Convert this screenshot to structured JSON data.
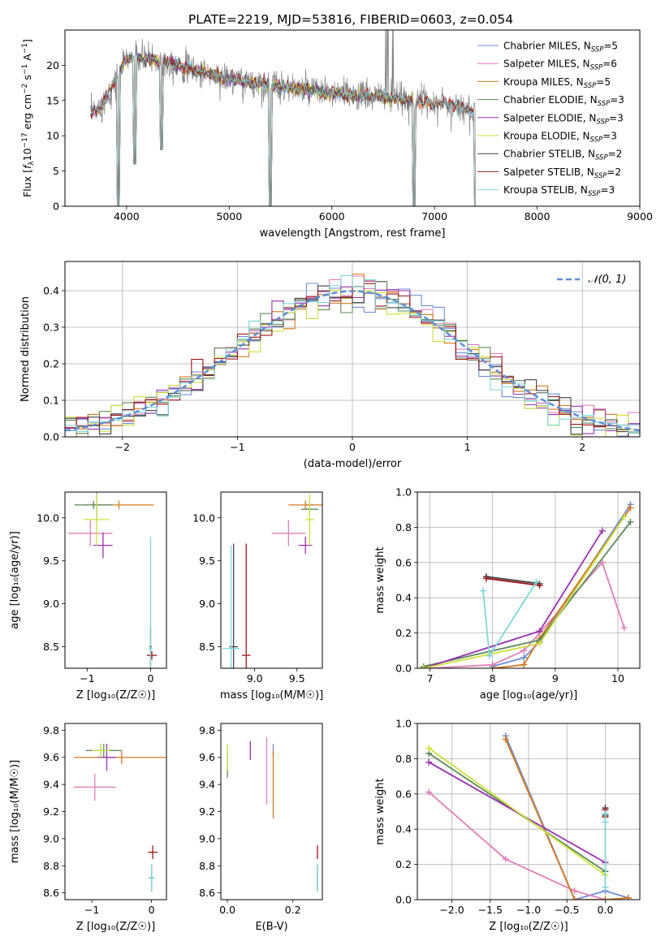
{
  "figure_title": "PLATE=2219, MJD=53816, FIBERID=0603, z=0.054",
  "colors": {
    "Chabrier MILES": "#6f8fd8",
    "Salpeter MILES": "#e07fb8",
    "Kroupa MILES": "#d47a1e",
    "Chabrier ELODIE": "#5a8a5a",
    "Salpeter ELODIE": "#9a30b0",
    "Kroupa ELODIE": "#cde23a",
    "Chabrier STELIB": "#444444",
    "Salpeter STELIB": "#a01515",
    "Kroupa STELIB": "#7dd8d8",
    "data": "#808080",
    "gaussian": "#5b8fd9"
  },
  "chart_data": [
    {
      "id": "spectrum",
      "type": "line",
      "xlabel": "wavelength [Angstrom, rest frame]",
      "ylabel_parts": {
        "pre": "Flux [",
        "f": "f",
        "lam": "λ",
        "mid": "10",
        "exp1": "−17",
        "rest": " erg cm",
        "exp2": "−2",
        "s": " s",
        "exp3": "−1",
        "A": " A",
        "exp4": "−1",
        "end": "]"
      },
      "xlim": [
        3400,
        9000
      ],
      "ylim": [
        0,
        25
      ],
      "xticks": [
        "4000",
        "5000",
        "6000",
        "7000",
        "8000",
        "9000"
      ],
      "yticks": [
        "0",
        "5",
        "10",
        "15",
        "20"
      ],
      "grid": false,
      "legend_position": "top-right",
      "legend": [
        {
          "name": "Chabrier MILES",
          "nssp": "5"
        },
        {
          "name": "Salpeter MILES",
          "nssp": "6"
        },
        {
          "name": "Kroupa MILES",
          "nssp": "5"
        },
        {
          "name": "Chabrier ELODIE",
          "nssp": "3"
        },
        {
          "name": "Salpeter ELODIE",
          "nssp": "3"
        },
        {
          "name": "Kroupa ELODIE",
          "nssp": "3"
        },
        {
          "name": "Chabrier STELIB",
          "nssp": "2"
        },
        {
          "name": "Salpeter STELIB",
          "nssp": "2"
        },
        {
          "name": "Kroupa STELIB",
          "nssp": "3"
        }
      ],
      "continuum_anchors": [
        [
          3650,
          13
        ],
        [
          3750,
          14
        ],
        [
          3900,
          18
        ],
        [
          4000,
          21
        ],
        [
          4200,
          21
        ],
        [
          4500,
          20
        ],
        [
          5000,
          18
        ],
        [
          5500,
          17
        ],
        [
          6000,
          16
        ],
        [
          6500,
          15.5
        ],
        [
          7000,
          14.7
        ],
        [
          7300,
          14
        ],
        [
          7450,
          12.5
        ]
      ],
      "model_ranges": {
        "MILES": [
          3650,
          7400
        ],
        "ELODIE": [
          3900,
          6800
        ],
        "STELIB": [
          3650,
          7400
        ]
      },
      "absorption_features": [
        [
          3920,
          0
        ],
        [
          4080,
          6
        ],
        [
          4340,
          8
        ],
        [
          5400,
          0
        ],
        [
          6800,
          0
        ],
        [
          7400,
          0
        ]
      ]
    },
    {
      "id": "residuals",
      "type": "histogram",
      "xlabel": "(data-model)/error",
      "ylabel": "Normed distribution",
      "xlim": [
        -2.5,
        2.5
      ],
      "ylim": [
        0,
        0.48
      ],
      "xticks": [
        "−2",
        "−1",
        "0",
        "1",
        "2"
      ],
      "yticks": [
        "0.0",
        "0.1",
        "0.2",
        "0.3",
        "0.4"
      ],
      "grid": true,
      "bin_width": 0.1,
      "legend_label": "𝒩(0, 1)",
      "legend_position": "top-right"
    },
    {
      "id": "age_vs_Z",
      "type": "scatter",
      "xlabel": "Z [log₁₀(Z/Z☉)]",
      "ylabel": "age  [log₁₀(age/yr)]",
      "xlim": [
        -1.35,
        0.25
      ],
      "ylim": [
        8.25,
        10.3
      ],
      "xticks": [
        "−1",
        "0"
      ],
      "yticks": [
        "8.5",
        "9.0",
        "9.5",
        "10.0"
      ],
      "points": [
        {
          "model": "Chabrier MILES",
          "x": -0.85,
          "y": 10.15,
          "xerr": 0.1,
          "yerr": 0.2
        },
        {
          "model": "Salpeter MILES",
          "x": -0.95,
          "y": 9.82,
          "xerr": 0.35,
          "yerr": 0.15
        },
        {
          "model": "Kroupa MILES",
          "x": -0.5,
          "y": 10.15,
          "xerr": 0.55,
          "yerr": 0.05
        },
        {
          "model": "Chabrier ELODIE",
          "x": -0.9,
          "y": 10.15,
          "xerr": 0.3,
          "yerr": 0.05
        },
        {
          "model": "Salpeter ELODIE",
          "x": -0.75,
          "y": 9.68,
          "xerr": 0.15,
          "yerr": 0.15
        },
        {
          "model": "Kroupa ELODIE",
          "x": -0.85,
          "y": 9.98,
          "xerr": 0.2,
          "yerr": 0.3
        },
        {
          "model": "Chabrier STELIB",
          "x": 0.0,
          "y": 8.5,
          "xerr": 0.02,
          "yerr": 0.25
        },
        {
          "model": "Salpeter STELIB",
          "x": 0.02,
          "y": 8.4,
          "xerr": 0.08,
          "yerr": 0.05
        },
        {
          "model": "Kroupa STELIB",
          "x": 0.0,
          "y": 8.48,
          "xerr": 0.03,
          "yerr": 1.3
        }
      ]
    },
    {
      "id": "age_vs_mass",
      "type": "scatter",
      "xlabel": "mass [log₁₀(M/M☉)]",
      "ylabel": "",
      "xlim": [
        8.6,
        9.8
      ],
      "ylim": [
        8.25,
        10.3
      ],
      "xticks": [
        "9.0",
        "9.5"
      ],
      "yticks": [
        "8.5",
        "9.0",
        "9.5",
        "10.0"
      ],
      "points": [
        {
          "model": "Chabrier MILES",
          "x": 9.65,
          "y": 10.15,
          "xerr": 0.05,
          "yerr": 0.05
        },
        {
          "model": "Salpeter MILES",
          "x": 9.4,
          "y": 9.82,
          "xerr": 0.2,
          "yerr": 0.15
        },
        {
          "model": "Kroupa MILES",
          "x": 9.6,
          "y": 10.15,
          "xerr": 0.2,
          "yerr": 0.05
        },
        {
          "model": "Chabrier ELODIE",
          "x": 9.65,
          "y": 10.1,
          "xerr": 0.1,
          "yerr": 0.05
        },
        {
          "model": "Salpeter ELODIE",
          "x": 9.6,
          "y": 9.68,
          "xerr": 0.08,
          "yerr": 0.1
        },
        {
          "model": "Kroupa ELODIE",
          "x": 9.65,
          "y": 9.98,
          "xerr": 0.05,
          "yerr": 0.3
        },
        {
          "model": "Chabrier STELIB",
          "x": 8.75,
          "y": 8.5,
          "xerr": 0.05,
          "yerr": 1.2
        },
        {
          "model": "Salpeter STELIB",
          "x": 8.9,
          "y": 8.4,
          "xerr": 0.05,
          "yerr": 1.3
        },
        {
          "model": "Kroupa STELIB",
          "x": 8.72,
          "y": 8.48,
          "xerr": 0.1,
          "yerr": 1.2
        }
      ]
    },
    {
      "id": "mass_weight_vs_age",
      "type": "line",
      "xlabel": "age  [log₁₀(age/yr)]",
      "ylabel": "mass weight",
      "xlim": [
        6.8,
        10.35
      ],
      "ylim": [
        0,
        1
      ],
      "xticks": [
        "7",
        "8",
        "9",
        "10"
      ],
      "yticks": [
        "0.0",
        "0.2",
        "0.4",
        "0.6",
        "0.8",
        "1.0"
      ],
      "grid": true,
      "series": [
        {
          "model": "Chabrier MILES",
          "x": [
            8.0,
            8.5,
            8.75,
            10.2
          ],
          "y": [
            0.01,
            0.06,
            0.15,
            0.93
          ]
        },
        {
          "model": "Salpeter MILES",
          "x": [
            7.0,
            8.0,
            8.5,
            9.75,
            10.1
          ],
          "y": [
            0.0,
            0.02,
            0.1,
            0.6,
            0.23
          ]
        },
        {
          "model": "Kroupa MILES",
          "x": [
            8.0,
            8.5,
            8.75,
            10.2
          ],
          "y": [
            0.0,
            0.02,
            0.17,
            0.91
          ]
        },
        {
          "model": "Chabrier ELODIE",
          "x": [
            6.9,
            8.75,
            10.2
          ],
          "y": [
            0.01,
            0.16,
            0.83
          ]
        },
        {
          "model": "Salpeter ELODIE",
          "x": [
            6.9,
            8.75,
            9.75
          ],
          "y": [
            0.0,
            0.21,
            0.78
          ]
        },
        {
          "model": "Kroupa ELODIE",
          "x": [
            6.9,
            8.75,
            10.1
          ],
          "y": [
            0.0,
            0.14,
            0.86
          ]
        },
        {
          "model": "Chabrier STELIB",
          "x": [
            7.9,
            8.75
          ],
          "y": [
            0.52,
            0.48
          ]
        },
        {
          "model": "Salpeter STELIB",
          "x": [
            7.9,
            8.75
          ],
          "y": [
            0.51,
            0.47
          ]
        },
        {
          "model": "Kroupa STELIB",
          "x": [
            7.85,
            7.95,
            8.7
          ],
          "y": [
            0.44,
            0.07,
            0.49
          ]
        }
      ]
    },
    {
      "id": "mass_vs_Z",
      "type": "scatter",
      "xlabel": "Z [log₁₀(Z/Z☉)]",
      "ylabel": "mass [log₁₀(M/M☉)]",
      "xlim": [
        -1.45,
        0.25
      ],
      "ylim": [
        8.55,
        9.85
      ],
      "xticks": [
        "−1",
        "0"
      ],
      "yticks": [
        "8.6",
        "8.8",
        "9.0",
        "9.2",
        "9.4",
        "9.6",
        "9.8"
      ],
      "points": [
        {
          "model": "Chabrier MILES",
          "x": -0.85,
          "y": 9.65,
          "xerr": 0.25,
          "yerr": 0.05
        },
        {
          "model": "Salpeter MILES",
          "x": -0.95,
          "y": 9.38,
          "xerr": 0.35,
          "yerr": 0.1
        },
        {
          "model": "Kroupa MILES",
          "x": -0.5,
          "y": 9.6,
          "xerr": 0.8,
          "yerr": 0.05
        },
        {
          "model": "Chabrier ELODIE",
          "x": -0.8,
          "y": 9.65,
          "xerr": 0.3,
          "yerr": 0.05
        },
        {
          "model": "Salpeter ELODIE",
          "x": -0.75,
          "y": 9.6,
          "xerr": 0.15,
          "yerr": 0.1
        },
        {
          "model": "Kroupa ELODIE",
          "x": -0.85,
          "y": 9.65,
          "xerr": 0.15,
          "yerr": 0.05
        },
        {
          "model": "Chabrier STELIB",
          "x": 0.0,
          "y": 8.71,
          "xerr": 0.05,
          "yerr": 0.1
        },
        {
          "model": "Salpeter STELIB",
          "x": 0.02,
          "y": 8.9,
          "xerr": 0.08,
          "yerr": 0.05
        },
        {
          "model": "Kroupa STELIB",
          "x": 0.0,
          "y": 8.71,
          "xerr": 0.05,
          "yerr": 0.1
        }
      ]
    },
    {
      "id": "mass_vs_EBV",
      "type": "scatter",
      "xlabel": "E(B-V)",
      "ylabel": "",
      "xlim": [
        -0.02,
        0.29
      ],
      "ylim": [
        8.55,
        9.85
      ],
      "xticks": [
        "0.0",
        "0.2"
      ],
      "yticks": [
        "8.6",
        "8.8",
        "9.0",
        "9.2",
        "9.4",
        "9.6",
        "9.8"
      ],
      "points": [
        {
          "model": "Chabrier MILES",
          "x": 0.14,
          "y": 9.65,
          "xerr": 0.0,
          "yerr": 0.05
        },
        {
          "model": "Salpeter MILES",
          "x": 0.12,
          "y": 9.5,
          "xerr": 0.0,
          "yerr": 0.25
        },
        {
          "model": "Kroupa MILES",
          "x": 0.14,
          "y": 9.4,
          "xerr": 0.0,
          "yerr": 0.25
        },
        {
          "model": "Chabrier ELODIE",
          "x": 0.0,
          "y": 9.55,
          "xerr": 0.0,
          "yerr": 0.1
        },
        {
          "model": "Salpeter ELODIE",
          "x": 0.07,
          "y": 9.65,
          "xerr": 0.0,
          "yerr": 0.07
        },
        {
          "model": "Kroupa ELODIE",
          "x": 0.0,
          "y": 9.6,
          "xerr": 0.0,
          "yerr": 0.1
        },
        {
          "model": "Chabrier STELIB",
          "x": 0.275,
          "y": 8.71,
          "xerr": 0.0,
          "yerr": 0.1
        },
        {
          "model": "Salpeter STELIB",
          "x": 0.275,
          "y": 8.9,
          "xerr": 0.0,
          "yerr": 0.05
        },
        {
          "model": "Kroupa STELIB",
          "x": 0.275,
          "y": 8.71,
          "xerr": 0.0,
          "yerr": 0.1
        }
      ]
    },
    {
      "id": "mass_weight_vs_Z",
      "type": "line",
      "xlabel": "Z [log₁₀(Z/Z☉)]",
      "ylabel": "mass weight",
      "xlim": [
        -2.45,
        0.45
      ],
      "ylim": [
        0,
        1
      ],
      "xticks": [
        "−2.0",
        "−1.5",
        "−1.0",
        "−0.5",
        "0.0"
      ],
      "yticks": [
        "0.0",
        "0.2",
        "0.4",
        "0.6",
        "0.8",
        "1.0"
      ],
      "grid": true,
      "series": [
        {
          "model": "Chabrier MILES",
          "x": [
            -1.3,
            -0.4,
            0.0,
            0.3
          ],
          "y": [
            0.93,
            0.0,
            0.05,
            0.01
          ]
        },
        {
          "model": "Salpeter MILES",
          "x": [
            -2.3,
            -1.3,
            -0.4,
            0.0
          ],
          "y": [
            0.61,
            0.23,
            0.05,
            0.0
          ]
        },
        {
          "model": "Kroupa MILES",
          "x": [
            -1.3,
            -0.4,
            0.0,
            0.3
          ],
          "y": [
            0.91,
            0.0,
            0.0,
            0.01
          ]
        },
        {
          "model": "Chabrier ELODIE",
          "x": [
            -2.3,
            0.0
          ],
          "y": [
            0.83,
            0.16
          ]
        },
        {
          "model": "Salpeter ELODIE",
          "x": [
            -2.3,
            0.0
          ],
          "y": [
            0.78,
            0.21
          ]
        },
        {
          "model": "Kroupa ELODIE",
          "x": [
            -2.3,
            0.0
          ],
          "y": [
            0.86,
            0.14
          ]
        },
        {
          "model": "Chabrier STELIB",
          "x": [
            0.0,
            0.0
          ],
          "y": [
            0.52,
            0.48
          ]
        },
        {
          "model": "Salpeter STELIB",
          "x": [
            0.0,
            0.0
          ],
          "y": [
            0.51,
            0.47
          ]
        },
        {
          "model": "Kroupa STELIB",
          "x": [
            0.0,
            0.0,
            0.0
          ],
          "y": [
            0.44,
            0.07,
            0.49
          ]
        }
      ]
    }
  ]
}
